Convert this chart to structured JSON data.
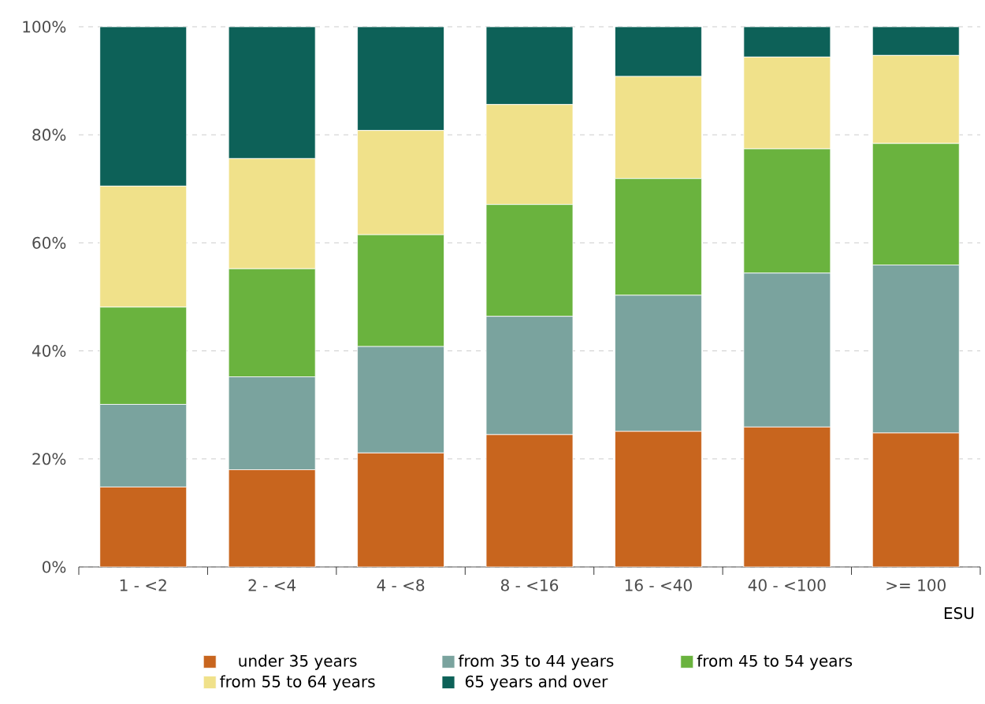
{
  "chart_data": {
    "type": "bar",
    "stacked": true,
    "xlabel": "ESU",
    "categories": [
      "1 - <2",
      "2 - <4",
      "4 - <8",
      "8 - <16",
      "16 - <40",
      "40 - <100",
      ">= 100"
    ],
    "series": [
      {
        "name": "under 35 years",
        "color": "#c8651e",
        "values": [
          14.8,
          18.0,
          21.1,
          24.5,
          25.1,
          25.9,
          24.8
        ]
      },
      {
        "name": "from 35 to 44 years",
        "color": "#7aa39e",
        "values": [
          15.3,
          17.2,
          19.7,
          21.9,
          25.2,
          28.5,
          31.1
        ]
      },
      {
        "name": "from 45 to 54 years",
        "color": "#6ab33e",
        "values": [
          18.0,
          20.0,
          20.7,
          20.7,
          21.6,
          23.0,
          22.5
        ]
      },
      {
        "name": "from 55 to 64 years",
        "color": "#f0e18a",
        "values": [
          22.4,
          20.4,
          19.3,
          18.5,
          18.9,
          17.0,
          16.3
        ]
      },
      {
        "name": "65 years and over",
        "color": "#0d6158",
        "values": [
          29.5,
          24.4,
          19.2,
          14.4,
          9.2,
          5.6,
          5.3
        ]
      }
    ],
    "ylim": [
      0,
      100
    ],
    "yticks": [
      {
        "value": 0,
        "label": "0%"
      },
      {
        "value": 20,
        "label": "20%"
      },
      {
        "value": 40,
        "label": "40%"
      },
      {
        "value": 60,
        "label": "60%"
      },
      {
        "value": 80,
        "label": "80%"
      },
      {
        "value": 100,
        "label": "100%"
      }
    ],
    "grid": "y",
    "legend": "bottom"
  }
}
